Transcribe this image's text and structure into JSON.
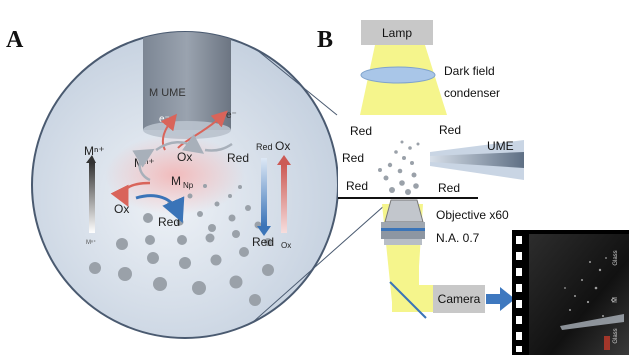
{
  "panels": {
    "a": "A",
    "b": "B"
  },
  "panel_a": {
    "ume": "M UME",
    "electron_left": "e⁻",
    "electron_right": "e⁻",
    "m_np_main": "M",
    "m_np_sub": "Np",
    "mn_center": "Mⁿ⁺",
    "ox_center": "Ox",
    "red_center": "Red",
    "mn_left": "Mⁿ⁺",
    "ox_left": "Ox",
    "red_bottom": "Red",
    "red_right_top": "Red",
    "ox_right_top": "Ox",
    "red_right_bottom": "Red",
    "ox_right_bottom": "Ox",
    "m_small": "Mⁿ⁺"
  },
  "panel_b": {
    "lamp": "Lamp",
    "condenser_line1": "Dark field",
    "condenser_line2": "condenser",
    "red_top_left": "Red",
    "red_top_right": "Red",
    "red_mid_left": "Red",
    "red_bottom_left": "Red",
    "red_bottom_right": "Red",
    "ume": "UME",
    "objective": "Objective x60",
    "na": "N.A. 0.7",
    "camera": "Camera",
    "film_glass_top": "Glass",
    "film_m": "M",
    "film_glass_bottom": "Glass"
  },
  "colors": {
    "light_beam": "#f5f58c",
    "reduction_arrow": "#d9645a",
    "oxidation_arrow": "#3a74b8",
    "camera_arrow": "#3e78bf",
    "lens": "#a9c6e8",
    "lamp_box": "#c8c8c8",
    "circle_fill": "#d5dde8"
  }
}
